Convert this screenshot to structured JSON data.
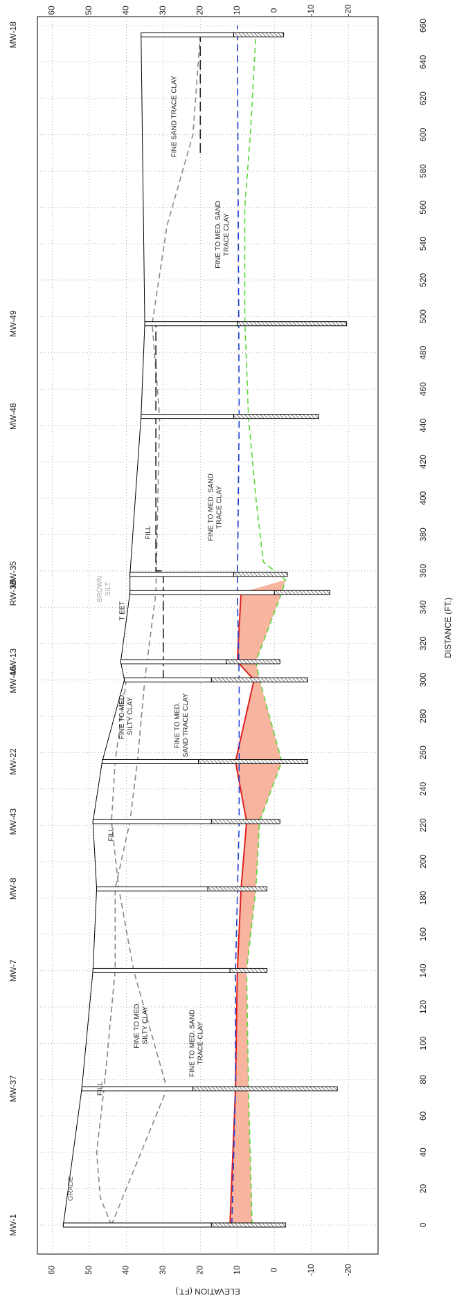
{
  "chart_data": {
    "type": "cross-section",
    "x_label": "DISTANCE (FT.)",
    "y_label": "ELEVATION (FT.)",
    "xlim": [
      -16,
      665
    ],
    "ylim": [
      -28,
      64
    ],
    "xticks": [
      0,
      20,
      40,
      60,
      80,
      100,
      120,
      140,
      160,
      180,
      200,
      220,
      240,
      260,
      280,
      300,
      320,
      340,
      360,
      380,
      400,
      420,
      440,
      460,
      480,
      500,
      520,
      540,
      560,
      580,
      600,
      620,
      640,
      660
    ],
    "yticks": [
      60,
      50,
      40,
      30,
      20,
      10,
      0,
      -10,
      -20
    ],
    "grid": true,
    "well_color": "#000000",
    "wells": [
      {
        "name": "MW-1",
        "distance": 0,
        "top": 57,
        "screen_top": 17,
        "bottom": -3
      },
      {
        "name": "MW-37",
        "distance": 75,
        "top": 52,
        "screen_top": 22,
        "bottom": -17
      },
      {
        "name": "MW-7",
        "distance": 140,
        "top": 49,
        "screen_top": 12,
        "bottom": 2
      },
      {
        "name": "MW-8",
        "distance": 185,
        "top": 48,
        "screen_top": 18,
        "bottom": 2
      },
      {
        "name": "MW-43",
        "distance": 222,
        "top": 49,
        "screen_top": 17,
        "bottom": -1.5
      },
      {
        "name": "MW-22",
        "distance": 255,
        "top": 46.5,
        "screen_top": 20.5,
        "bottom": -9
      },
      {
        "name": "MW-46",
        "distance": 300,
        "top": 40.5,
        "screen_top": 17,
        "bottom": -9
      },
      {
        "name": "MW-13",
        "distance": 310,
        "top": 41.5,
        "screen_top": 13,
        "bottom": -1.5
      },
      {
        "name": "RW-3B",
        "distance": 348,
        "top": 39,
        "screen_top": 0,
        "bottom": -15
      },
      {
        "name": "MW-35",
        "distance": 358,
        "top": 39,
        "screen_top": 11,
        "bottom": -3.5
      },
      {
        "name": "MW-48",
        "distance": 445,
        "top": 36,
        "screen_top": 11,
        "bottom": -12
      },
      {
        "name": "MW-49",
        "distance": 496,
        "top": 35,
        "screen_top": 10,
        "bottom": -19.5
      },
      {
        "name": "MW-18",
        "distance": 655,
        "top": 36,
        "screen_top": 11,
        "bottom": -2.5
      }
    ],
    "plume_color": "#f7b5a0",
    "lines": [
      {
        "color": "#e02020",
        "dash": "none",
        "x": [
          0,
          75,
          140,
          185,
          222,
          255,
          300,
          310,
          348
        ],
        "y": [
          12,
          10.5,
          10,
          9,
          7.5,
          10.5,
          5.5,
          10,
          9
        ]
      },
      {
        "color": "#58d838",
        "dash": "8 5",
        "x": [
          0,
          75,
          140,
          185,
          222,
          255,
          300,
          310,
          348,
          355,
          365,
          400,
          445,
          500,
          560,
          600,
          655
        ],
        "y": [
          6,
          7,
          7.5,
          5,
          4,
          -2,
          4,
          5,
          -2,
          -3,
          3,
          5,
          7,
          8,
          8,
          6.5,
          5
        ]
      },
      {
        "color": "#1f3fd0",
        "dash": "10 6",
        "x": [
          0,
          75,
          140,
          222,
          300,
          348,
          445,
          660
        ],
        "y": [
          11.5,
          10.5,
          10.5,
          9.5,
          9.5,
          10,
          9.5,
          10
        ]
      },
      {
        "color": "#888888",
        "dash": "8 5",
        "x": [
          0,
          15,
          40,
          75,
          140,
          185,
          222,
          255,
          300,
          348,
          445,
          496,
          550,
          600,
          655
        ],
        "y": [
          44,
          47,
          48,
          46,
          43,
          43,
          39,
          37,
          35,
          32,
          31,
          33,
          29,
          22,
          20
        ]
      },
      {
        "color": "#888888",
        "dash": "8 5",
        "x": [
          0,
          75,
          140,
          185,
          222,
          255,
          300
        ],
        "y": [
          44,
          29,
          38,
          42,
          44,
          43,
          40
        ]
      },
      {
        "color": "#222222",
        "dash": "14 6",
        "x": [
          300,
          360,
          360,
          496
        ],
        "y": [
          30,
          30,
          32,
          32
        ]
      },
      {
        "color": "#222222",
        "dash": "14 6",
        "x": [
          590,
          655
        ],
        "y": [
          20,
          20
        ]
      }
    ],
    "annotations": [
      {
        "text": [
          "GRADE"
        ],
        "x": 20,
        "y": 55,
        "color": "#666666"
      },
      {
        "text": [
          "FILL"
        ],
        "x": 75,
        "y": 47,
        "color": "#222222"
      },
      {
        "text": [
          "FINE TO MED.",
          "SILTY CLAY"
        ],
        "x": 110,
        "y": 36,
        "color": "#222222"
      },
      {
        "text": [
          "FINE TO MED. SAND",
          "TRACE CLAY"
        ],
        "x": 100,
        "y": 21,
        "color": "#222222"
      },
      {
        "text": [
          "FILL"
        ],
        "x": 215,
        "y": 44,
        "color": "#222222"
      },
      {
        "text": [
          "FINE TO MED.",
          "SILTY CLAY"
        ],
        "x": 280,
        "y": 40,
        "color": "#222222"
      },
      {
        "text": [
          "FINE TO MED.",
          "SAND TRACE CLAY"
        ],
        "x": 275,
        "y": 25,
        "color": "#222222"
      },
      {
        "text": [
          "BROWN",
          "SILT"
        ],
        "x": 350,
        "y": 46,
        "color": "#aaaaaa"
      },
      {
        "text": [
          "T EET"
        ],
        "x": 338,
        "y": 41,
        "color": "#222222"
      },
      {
        "text": [
          "FILL"
        ],
        "x": 381,
        "y": 34,
        "color": "#222222"
      },
      {
        "text": [
          "FINE TO MED. SAND",
          "TRACE CLAY"
        ],
        "x": 395,
        "y": 16,
        "color": "#222222"
      },
      {
        "text": [
          "FINE TO MED. SAND",
          "TRACE CLAY"
        ],
        "x": 545,
        "y": 14,
        "color": "#222222"
      },
      {
        "text": [
          "FINE SAND TRACE CLAY"
        ],
        "x": 610,
        "y": 27,
        "color": "#222222"
      }
    ]
  }
}
